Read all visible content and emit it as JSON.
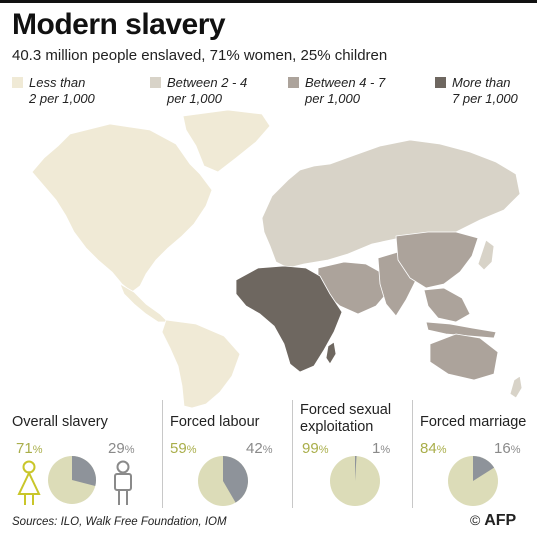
{
  "title": "Modern slavery",
  "subtitle": "40.3 million people enslaved, 71% women, 25% children",
  "legend": [
    {
      "line1": "Less than",
      "line2": "2 per 1,000",
      "color": "#f0ead6"
    },
    {
      "line1": "Between 2 - 4",
      "line2": "per 1,000",
      "color": "#d8d3c8"
    },
    {
      "line1": "Between 4 - 7",
      "line2": "per 1,000",
      "color": "#aca39b"
    },
    {
      "line1": "More than",
      "line2": "7 per 1,000",
      "color": "#6e6760"
    }
  ],
  "chart_data": [
    {
      "type": "pie",
      "title": "Overall slavery",
      "categories": [
        "Women",
        "Men"
      ],
      "values": [
        71,
        29
      ],
      "labels": [
        "71%",
        "29%"
      ]
    },
    {
      "type": "pie",
      "title": "Forced labour",
      "values": [
        59,
        42
      ],
      "labels": [
        "59%",
        "42%"
      ]
    },
    {
      "type": "pie",
      "title": "Forced sexual exploitation",
      "title_line1": "Forced sexual",
      "title_line2": "exploitation",
      "values": [
        99,
        1
      ],
      "labels": [
        "99%",
        "1%"
      ]
    },
    {
      "type": "pie",
      "title": "Forced marriage",
      "values": [
        84,
        16
      ],
      "labels": [
        "84%",
        "16%"
      ]
    }
  ],
  "colors": {
    "women": "#dcdcb8",
    "men": "#8e939a",
    "women_text": "#a9ae4a",
    "men_text": "#8a8a8a",
    "female_icon": "#c9c62a",
    "male_icon": "#8a8a8a"
  },
  "icons": [
    "female-figure-icon",
    "male-figure-icon"
  ],
  "source": "Sources: ILO, Walk Free Foundation, IOM",
  "credit": "AFP"
}
